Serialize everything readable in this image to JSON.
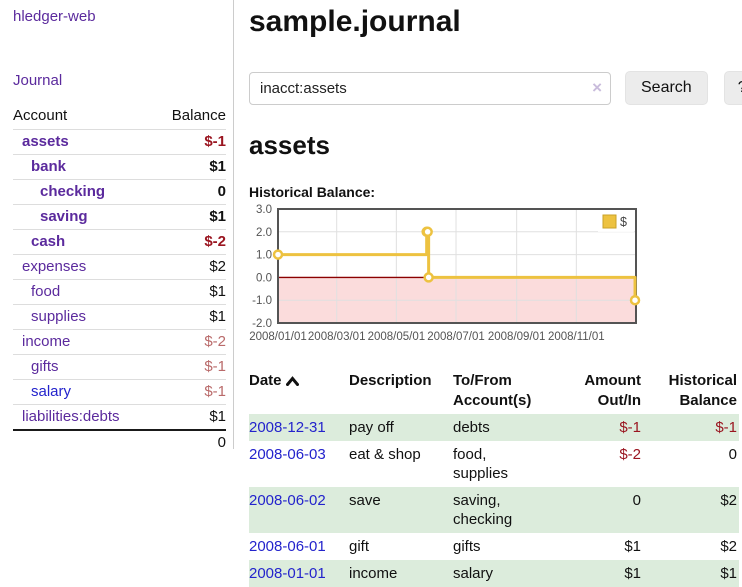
{
  "sidebar": {
    "brand": "hledger-web",
    "nav_journal": "Journal",
    "accounts_table": {
      "header_account": "Account",
      "header_balance": "Balance",
      "rows": [
        {
          "name": "assets",
          "balance": "$-1",
          "depth": 1,
          "bold": true,
          "balance_style": "neg-strong",
          "link_style": "purple"
        },
        {
          "name": "bank",
          "balance": "$1",
          "depth": 2,
          "bold": true,
          "balance_style": "pos",
          "link_style": "purple"
        },
        {
          "name": "checking",
          "balance": "0",
          "depth": 3,
          "bold": true,
          "balance_style": "pos",
          "link_style": "purple"
        },
        {
          "name": "saving",
          "balance": "$1",
          "depth": 3,
          "bold": true,
          "balance_style": "pos",
          "link_style": "purple"
        },
        {
          "name": "cash",
          "balance": "$-2",
          "depth": 2,
          "bold": true,
          "balance_style": "neg-strong",
          "link_style": "purple"
        },
        {
          "name": "expenses",
          "balance": "$2",
          "depth": 1,
          "bold": false,
          "balance_style": "pos",
          "link_style": "purple"
        },
        {
          "name": "food",
          "balance": "$1",
          "depth": 2,
          "bold": false,
          "balance_style": "pos",
          "link_style": "purple"
        },
        {
          "name": "supplies",
          "balance": "$1",
          "depth": 2,
          "bold": false,
          "balance_style": "pos",
          "link_style": "purple"
        },
        {
          "name": "income",
          "balance": "$-2",
          "depth": 1,
          "bold": false,
          "balance_style": "neg-soft",
          "link_style": "purple"
        },
        {
          "name": "gifts",
          "balance": "$-1",
          "depth": 2,
          "bold": false,
          "balance_style": "neg-soft",
          "link_style": "purple"
        },
        {
          "name": "salary",
          "balance": "$-1",
          "depth": 2,
          "bold": false,
          "balance_style": "neg-soft",
          "link_style": "blue"
        },
        {
          "name": "liabilities:debts",
          "balance": "$1",
          "depth": 1,
          "bold": false,
          "balance_style": "pos",
          "link_style": "purple"
        }
      ],
      "total": "0"
    }
  },
  "header": {
    "title": "sample.journal"
  },
  "search": {
    "value": "inacct:assets",
    "clear_label": "×",
    "search_button": "Search",
    "help_button": "?"
  },
  "account_page": {
    "heading": "assets",
    "chart_title": "Historical Balance:"
  },
  "chart_data": {
    "type": "line",
    "step": true,
    "series": [
      {
        "name": "$",
        "color": "#edc240",
        "points": [
          {
            "date": "2008-01-01",
            "value": 1
          },
          {
            "date": "2008-06-01",
            "value": 2
          },
          {
            "date": "2008-06-02",
            "value": 2
          },
          {
            "date": "2008-06-03",
            "value": 0
          },
          {
            "date": "2008-12-31",
            "value": -1
          }
        ]
      }
    ],
    "x_range": [
      "2008-01-01",
      "2009-01-01"
    ],
    "ylim": [
      -2,
      3
    ],
    "y_ticks": [
      "3.0",
      "2.0",
      "1.0",
      "0.0",
      "-1.0",
      "-2.0"
    ],
    "x_ticks": [
      "2008/01/01",
      "2008/03/01",
      "2008/05/01",
      "2008/07/01",
      "2008/09/01",
      "2008/11/01"
    ],
    "legend_position": "top-right",
    "grid": true,
    "negative_region_color": "#fbdcdc",
    "zero_line_color": "#8b0000",
    "axis_text_color": "#545454",
    "border_color": "#545454",
    "grid_color": "#e0e0e0"
  },
  "register_table": {
    "headers": {
      "date": "Date",
      "description": "Description",
      "accounts": "To/From Account(s)",
      "amount": "Amount Out/In",
      "balance": "Historical Balance"
    },
    "sort": "ascending",
    "rows": [
      {
        "date": "2008-12-31",
        "description": "pay off",
        "accounts": "debts",
        "amount": "$-1",
        "amount_negative": true,
        "balance": "$-1",
        "balance_negative": true
      },
      {
        "date": "2008-06-03",
        "description": "eat & shop",
        "accounts": "food, supplies",
        "amount": "$-2",
        "amount_negative": true,
        "balance": "0",
        "balance_negative": false
      },
      {
        "date": "2008-06-02",
        "description": "save",
        "accounts": "saving, checking",
        "amount": "0",
        "amount_negative": false,
        "balance": "$2",
        "balance_negative": false
      },
      {
        "date": "2008-06-01",
        "description": "gift",
        "accounts": "gifts",
        "amount": "$1",
        "amount_negative": false,
        "balance": "$2",
        "balance_negative": false
      },
      {
        "date": "2008-01-01",
        "description": "income",
        "accounts": "salary",
        "amount": "$1",
        "amount_negative": false,
        "balance": "$1",
        "balance_negative": false
      }
    ]
  },
  "colors": {
    "link_purple": "#5b2a9d",
    "link_blue": "#2323cc",
    "negative_strong": "#9a1520",
    "negative_soft": "#b96a6a",
    "row_stripe_green": "#dcecdc",
    "series_gold": "#edc240"
  }
}
